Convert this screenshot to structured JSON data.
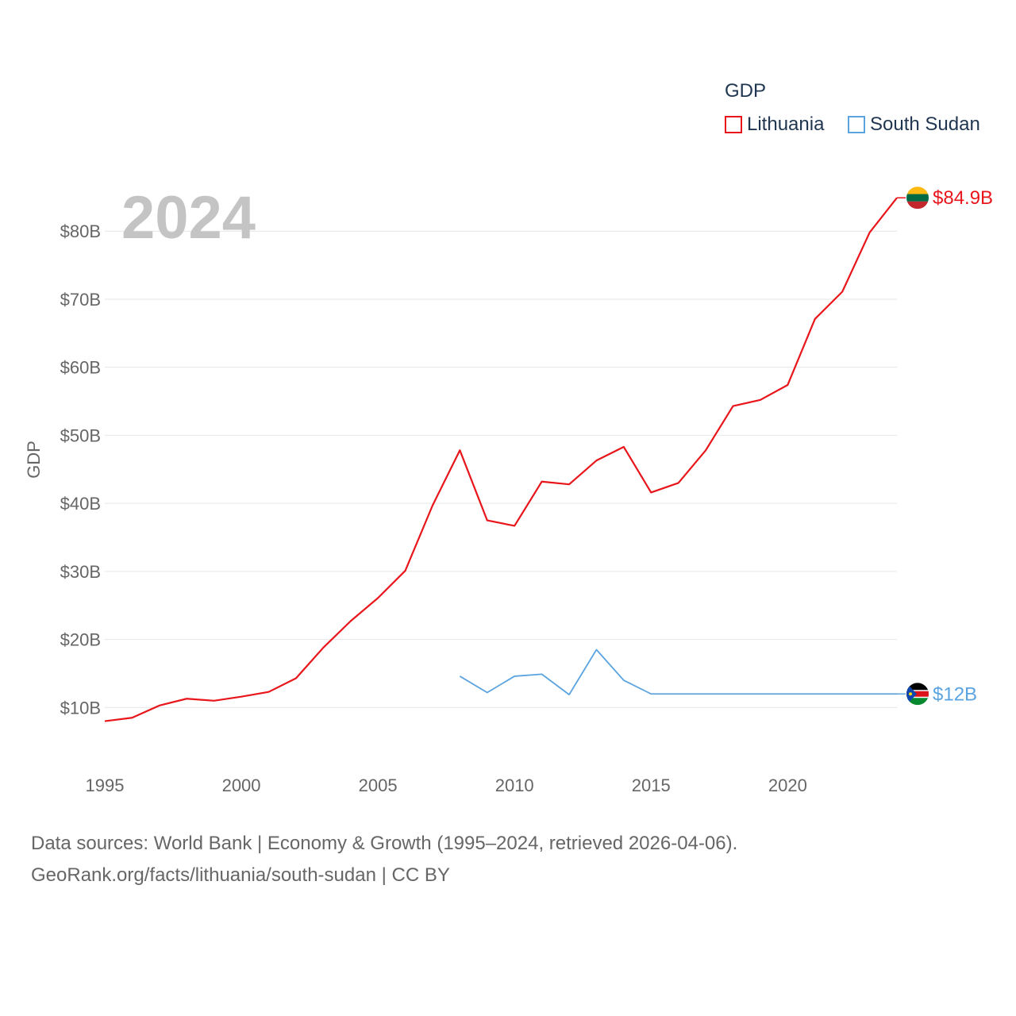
{
  "legend": {
    "title": "GDP",
    "items": [
      {
        "label": "Lithuania",
        "color": "#e8161b"
      },
      {
        "label": "South Sudan",
        "color": "#5ba4e0"
      }
    ]
  },
  "footer": {
    "line1": "Data sources: World Bank | Economy & Growth (1995–2024, retrieved 2026-04-06).",
    "line2": "GeoRank.org/facts/lithuania/south-sudan | CC BY"
  },
  "chart_data": {
    "type": "line",
    "title": "",
    "year_label": "2024",
    "xlabel": "",
    "ylabel": "GDP",
    "xlim": [
      1995,
      2024
    ],
    "ylim": [
      4,
      84.9
    ],
    "xticks": [
      1995,
      2000,
      2005,
      2010,
      2015,
      2020
    ],
    "xtick_labels": [
      "1995",
      "2000",
      "2005",
      "2010",
      "2015",
      "2020"
    ],
    "yticks": [
      10,
      20,
      30,
      40,
      50,
      60,
      70,
      80
    ],
    "ytick_labels": [
      "$10B",
      "$20B",
      "$30B",
      "$40B",
      "$50B",
      "$60B",
      "$70B",
      "$80B"
    ],
    "grid": true,
    "series": [
      {
        "name": "Lithuania",
        "color": "#e8161b",
        "end_label": "$84.9B",
        "flag": "lithuania",
        "x": [
          1995,
          1996,
          1997,
          1998,
          1999,
          2000,
          2001,
          2002,
          2003,
          2004,
          2005,
          2006,
          2007,
          2008,
          2009,
          2010,
          2011,
          2012,
          2013,
          2014,
          2015,
          2016,
          2017,
          2018,
          2019,
          2020,
          2021,
          2022,
          2023,
          2024
        ],
        "values": [
          8.0,
          8.5,
          10.3,
          11.3,
          11.0,
          11.6,
          12.3,
          14.3,
          18.8,
          22.7,
          26.1,
          30.1,
          39.7,
          47.8,
          37.5,
          36.7,
          43.2,
          42.8,
          46.3,
          48.3,
          41.6,
          43.0,
          47.8,
          54.3,
          55.2,
          57.4,
          67.1,
          71.1,
          79.8,
          84.9
        ]
      },
      {
        "name": "South Sudan",
        "color": "#5ba4e0",
        "end_label": "$12B",
        "flag": "south-sudan",
        "x": [
          2008,
          2009,
          2010,
          2011,
          2012,
          2013,
          2014,
          2015,
          2016,
          2017,
          2018,
          2019,
          2020,
          2021,
          2022,
          2023,
          2024
        ],
        "values": [
          14.6,
          12.2,
          14.6,
          14.9,
          11.9,
          18.5,
          14.0,
          12.0,
          12.0,
          12.0,
          12.0,
          12.0,
          12.0,
          12.0,
          12.0,
          12.0,
          12.0
        ]
      }
    ]
  }
}
